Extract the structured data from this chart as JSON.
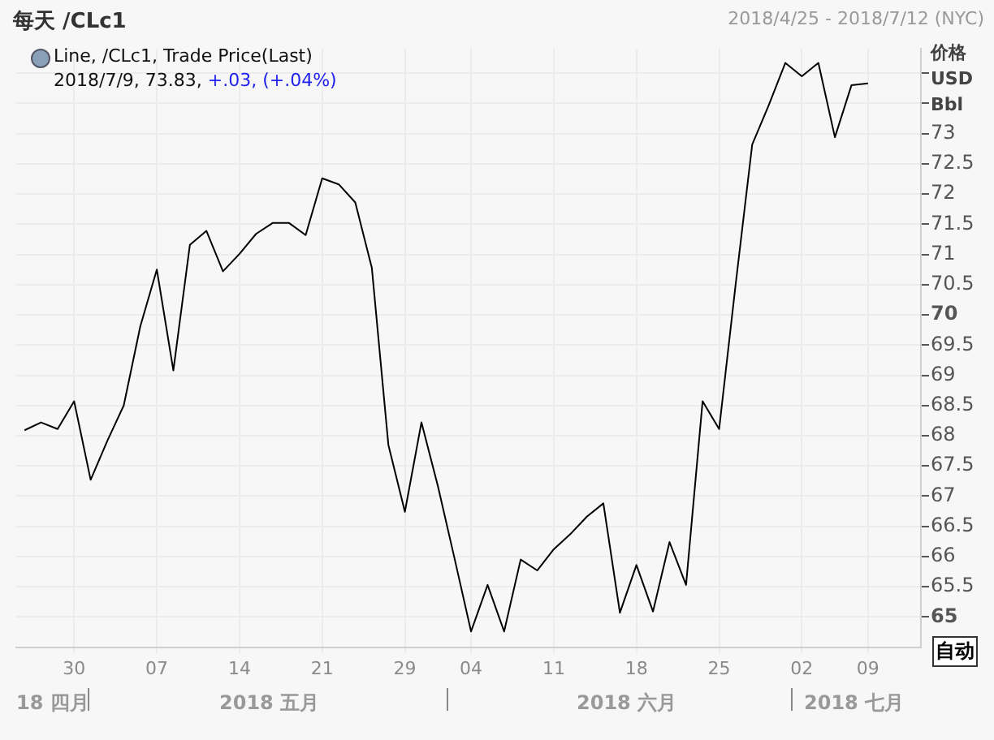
{
  "chart_data": {
    "type": "line",
    "title": "每天 /CLc1",
    "subtitle": "2018/4/25 - 2018/7/12 (NYC)",
    "ylabel": "价格 USD Bbl",
    "categories": [
      null,
      null,
      null,
      "30",
      null,
      null,
      null,
      null,
      "07",
      null,
      null,
      null,
      null,
      "14",
      null,
      null,
      null,
      null,
      "21",
      null,
      null,
      null,
      null,
      "29",
      null,
      null,
      null,
      "04",
      null,
      null,
      null,
      null,
      "11",
      null,
      null,
      null,
      null,
      "18",
      null,
      null,
      null,
      null,
      "25",
      null,
      null,
      null,
      null,
      "02",
      null,
      null,
      null,
      "09"
    ],
    "series": [
      {
        "color": "#000000",
        "values": [
          68.09,
          68.22,
          68.11,
          68.57,
          67.27,
          67.91,
          68.5,
          69.81,
          70.75,
          69.08,
          71.16,
          71.39,
          70.72,
          71.01,
          71.34,
          71.52,
          71.52,
          71.32,
          72.26,
          72.16,
          71.86,
          70.78,
          67.85,
          66.74,
          68.22,
          67.16,
          65.97,
          64.76,
          65.53,
          64.76,
          65.95,
          65.77,
          66.12,
          66.37,
          66.66,
          66.88,
          65.07,
          65.86,
          65.09,
          66.24,
          65.53,
          68.57,
          68.11,
          70.51,
          72.82,
          73.47,
          74.17,
          73.95,
          74.17,
          72.94,
          73.8,
          73.83
        ]
      }
    ],
    "ylim": [
      64.5,
      74.4
    ],
    "yticks": [
      65,
      65.5,
      66,
      66.5,
      67,
      67.5,
      68,
      68.5,
      69,
      69.5,
      70,
      70.5,
      71,
      71.5,
      72,
      72.5,
      73,
      {
        "value": 73.5,
        "label": null
      },
      {
        "value": 74,
        "label": null
      }
    ],
    "grid": true,
    "annotations": [
      "Line, /CLc1, Trade Price(Last)",
      "2018/7/9, 73.83,",
      "+.03, (+.04%)",
      "18 四月",
      "2018 五月",
      "2018 六月",
      "2018 七月",
      "自动"
    ]
  }
}
